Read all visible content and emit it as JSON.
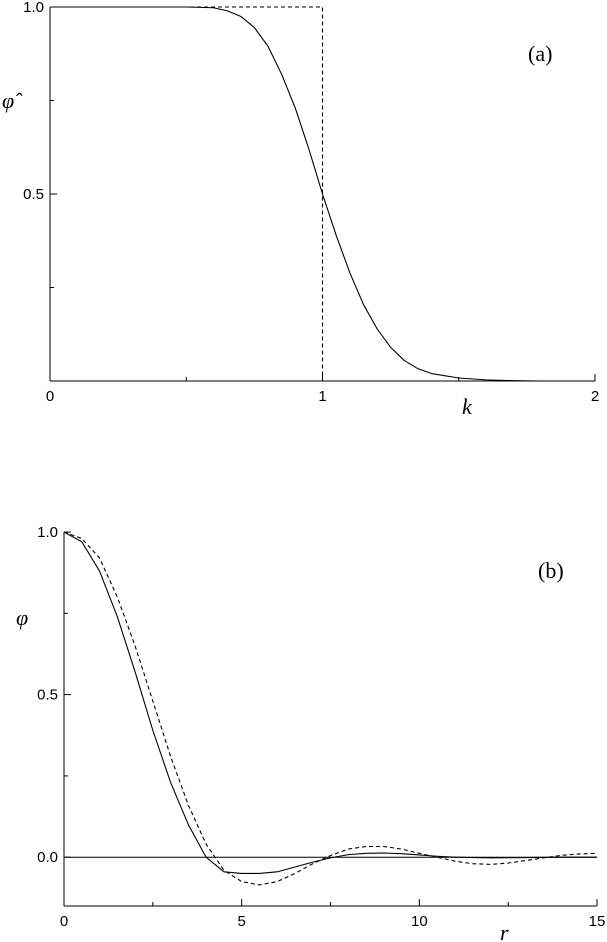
{
  "chart_data": [
    {
      "type": "line",
      "panel_label": "(a)",
      "xlabel": "k",
      "ylabel": "φ̂",
      "xlim": [
        0,
        2
      ],
      "ylim": [
        0,
        1
      ],
      "x_ticks": [
        "0",
        "1",
        "2"
      ],
      "y_ticks": [
        "0.5",
        "1.0"
      ],
      "grid": false,
      "series": [
        {
          "style": "solid",
          "x": [
            0,
            0.5,
            0.6,
            0.65,
            0.7,
            0.75,
            0.8,
            0.85,
            0.9,
            0.95,
            1.0,
            1.05,
            1.1,
            1.15,
            1.2,
            1.25,
            1.3,
            1.35,
            1.4,
            1.5,
            1.6,
            1.7,
            1.8,
            2.0
          ],
          "y": [
            1.0,
            1.0,
            0.998,
            0.99,
            0.975,
            0.945,
            0.895,
            0.82,
            0.73,
            0.62,
            0.5,
            0.39,
            0.29,
            0.205,
            0.14,
            0.09,
            0.055,
            0.033,
            0.02,
            0.008,
            0.003,
            0.001,
            0.0,
            0.0
          ]
        },
        {
          "style": "dashed",
          "x": [
            0,
            1.0,
            1.0,
            2.0
          ],
          "y": [
            1.0,
            1.0,
            0.0,
            0.0
          ]
        }
      ]
    },
    {
      "type": "line",
      "panel_label": "(b)",
      "xlabel": "r",
      "ylabel": "φ",
      "xlim": [
        0,
        15
      ],
      "ylim": [
        -0.15,
        1.0
      ],
      "x_ticks": [
        "0",
        "5",
        "10",
        "15"
      ],
      "y_ticks": [
        "0.0",
        "0.5",
        "1.0"
      ],
      "grid": false,
      "zero_line": true,
      "series": [
        {
          "style": "solid",
          "x": [
            0,
            0.5,
            1,
            1.5,
            2,
            2.5,
            3,
            3.5,
            4,
            4.5,
            5,
            5.5,
            6,
            6.5,
            7,
            7.5,
            8,
            8.5,
            9,
            9.5,
            10,
            10.5,
            11,
            12,
            13,
            14,
            15
          ],
          "y": [
            1.0,
            0.97,
            0.88,
            0.74,
            0.57,
            0.39,
            0.23,
            0.1,
            0.0,
            -0.045,
            -0.05,
            -0.05,
            -0.045,
            -0.03,
            -0.015,
            -0.002,
            0.008,
            0.012,
            0.013,
            0.011,
            0.007,
            0.003,
            0.0,
            -0.002,
            -0.001,
            0.0,
            0.0
          ]
        },
        {
          "style": "dashed",
          "x": [
            0,
            0.5,
            1,
            1.5,
            2,
            2.5,
            3,
            3.5,
            4,
            4.5,
            5,
            5.5,
            6,
            6.5,
            7,
            7.5,
            8,
            8.5,
            9,
            9.5,
            10,
            10.5,
            11,
            11.5,
            12,
            12.5,
            13,
            13.5,
            14,
            14.5,
            15
          ],
          "y": [
            1.0,
            0.98,
            0.92,
            0.8,
            0.65,
            0.48,
            0.31,
            0.16,
            0.04,
            -0.04,
            -0.075,
            -0.085,
            -0.075,
            -0.05,
            -0.02,
            0.005,
            0.025,
            0.033,
            0.033,
            0.025,
            0.012,
            0.0,
            -0.012,
            -0.02,
            -0.022,
            -0.018,
            -0.01,
            -0.002,
            0.006,
            0.01,
            0.012
          ]
        }
      ]
    }
  ]
}
